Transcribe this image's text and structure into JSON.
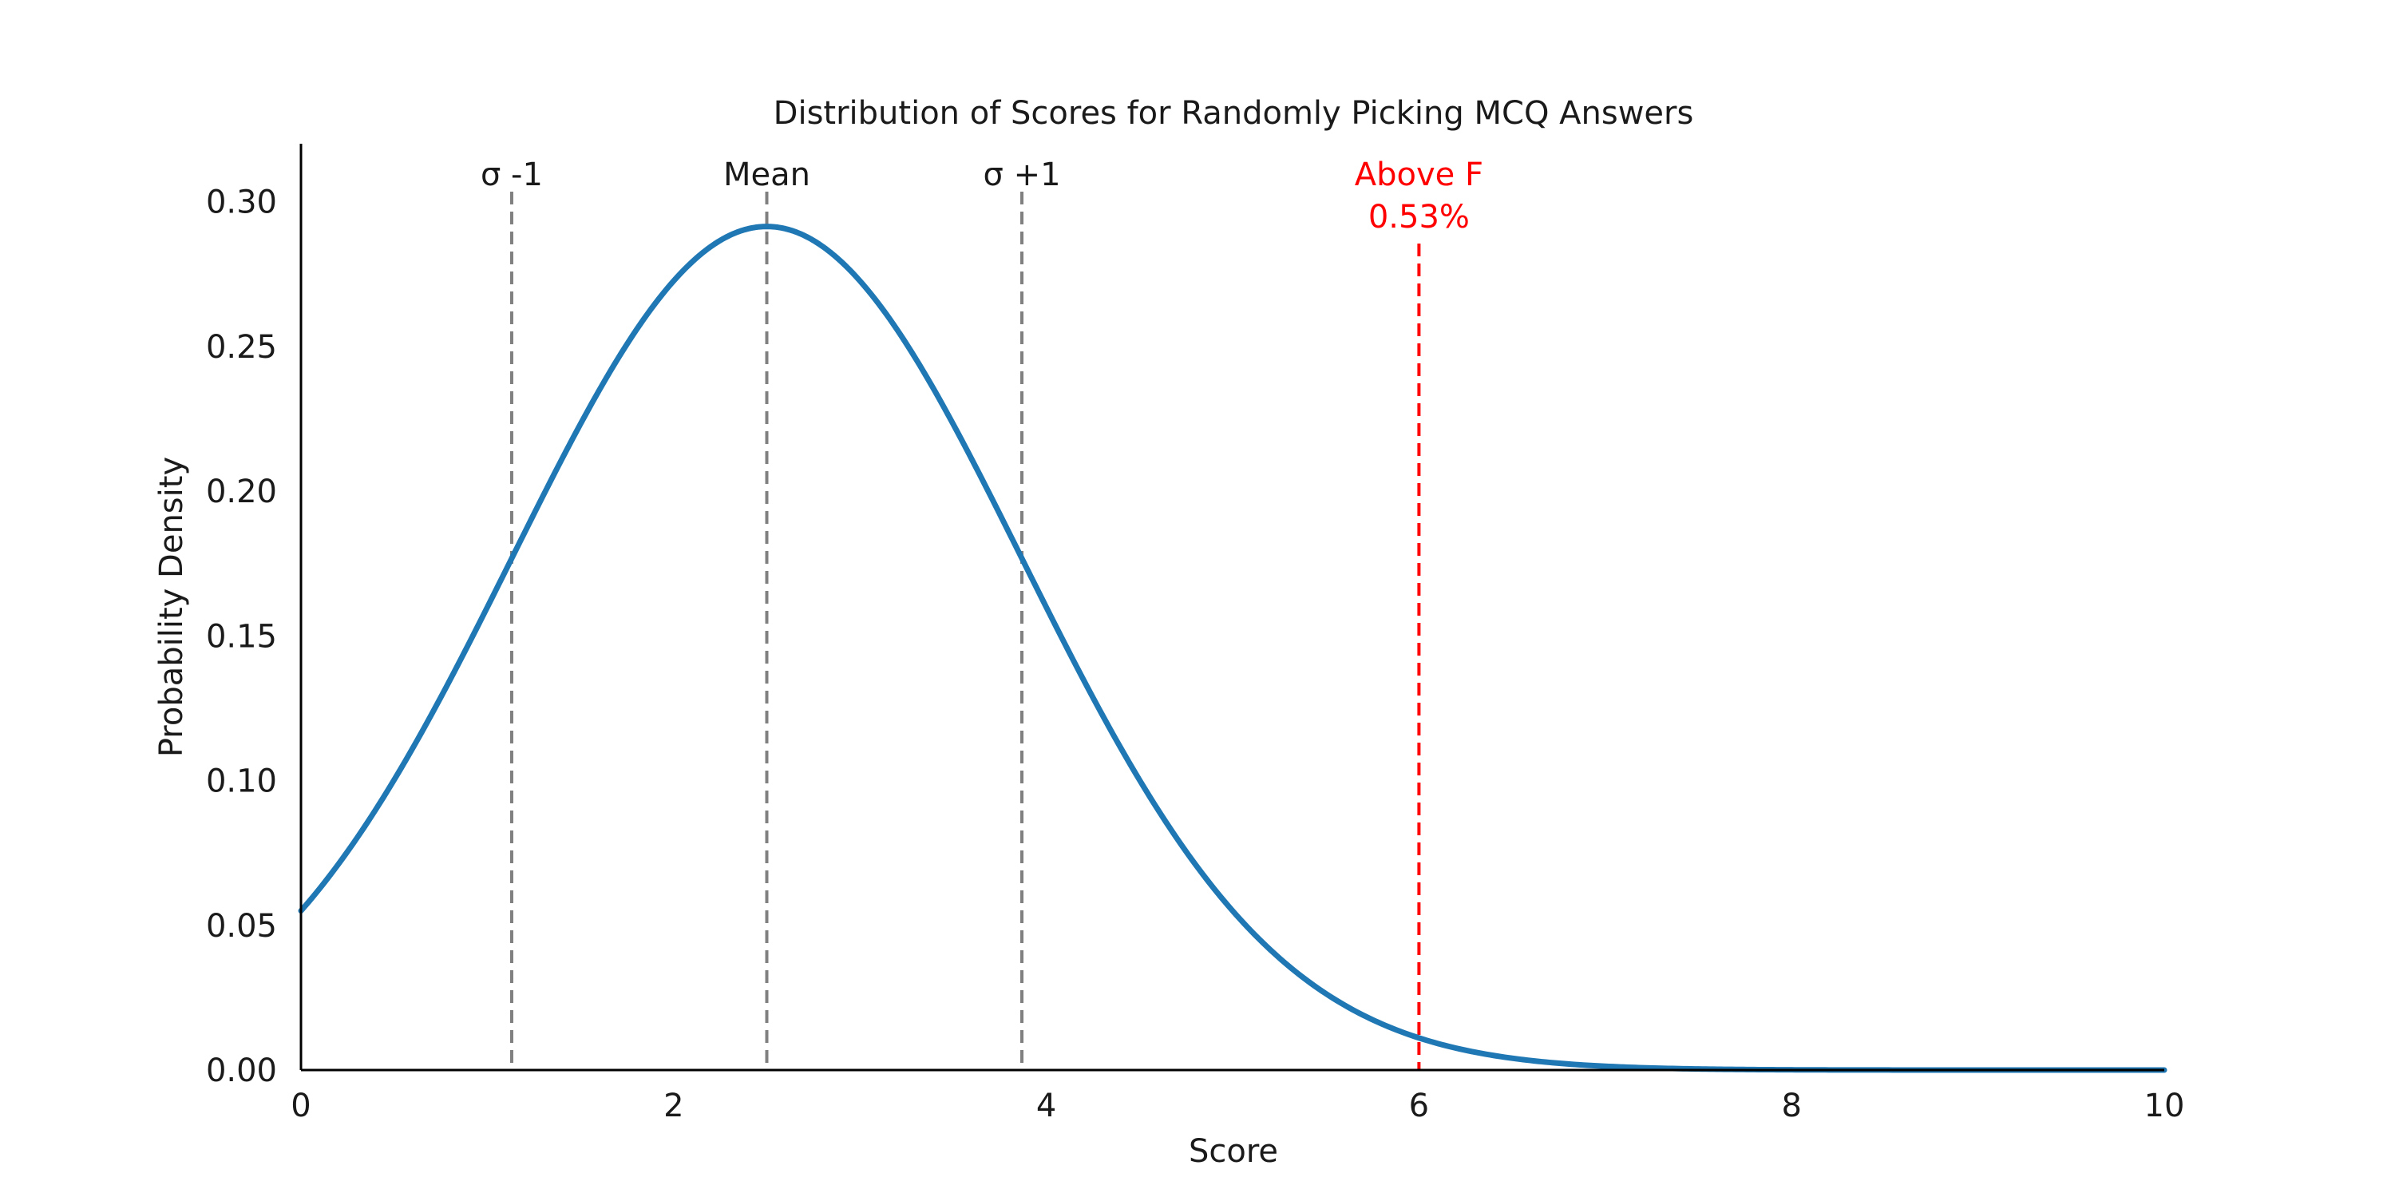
{
  "chart_data": {
    "type": "line",
    "title": "Distribution of Scores for Randomly Picking MCQ Answers",
    "xlabel": "Score",
    "ylabel": "Probability Density",
    "xlim": [
      0,
      10
    ],
    "ylim": [
      0,
      0.32
    ],
    "xticks": [
      "0",
      "2",
      "4",
      "6",
      "8",
      "10"
    ],
    "yticks": [
      "0.00",
      "0.05",
      "0.10",
      "0.15",
      "0.20",
      "0.25",
      "0.30"
    ],
    "grid": false,
    "legend": "none",
    "series": [
      {
        "color": "#1f77b4",
        "distribution": "normal",
        "mean": 2.5,
        "std": 1.369,
        "x": [
          0,
          0.5,
          1.0,
          1.5,
          2.0,
          2.5,
          3.0,
          3.5,
          4.0,
          4.5,
          5.0,
          5.5,
          6.0,
          6.5,
          7.0,
          8.0,
          9.0,
          10.0
        ],
        "y": [
          0.0551,
          0.0999,
          0.1607,
          0.2238,
          0.2734,
          0.2914,
          0.2734,
          0.2238,
          0.1607,
          0.0999,
          0.0551,
          0.0266,
          0.0113,
          0.0042,
          0.0014,
          0.0001,
          0.0,
          0.0
        ]
      }
    ],
    "reference_lines": [
      {
        "x": 1.131,
        "label": "σ -1",
        "color": "#808080"
      },
      {
        "x": 2.5,
        "label": "Mean",
        "color": "#808080"
      },
      {
        "x": 3.869,
        "label": "σ +1",
        "color": "#808080"
      },
      {
        "x": 6.0,
        "label": "Above F",
        "sublabel": "0.53%",
        "color": "#ff0000"
      }
    ]
  }
}
